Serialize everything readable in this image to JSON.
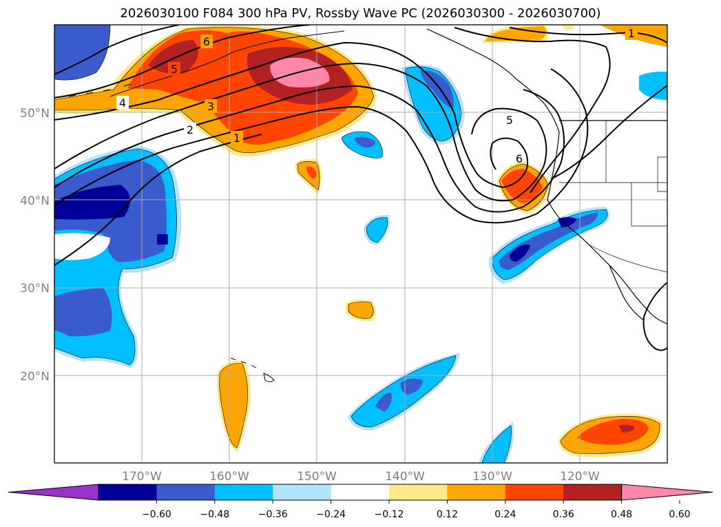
{
  "title": "2026030100 F084 300 hPa PV, Rossby Wave PC (2026030300 - 2026030700)",
  "map": {
    "lon_range": [
      -180,
      -110
    ],
    "lat_range": [
      10,
      60
    ],
    "lat_labels": [
      "50°N",
      "40°N",
      "30°N",
      "20°N"
    ],
    "lon_labels": [
      "170°W",
      "160°W",
      "150°W",
      "140°W",
      "130°W",
      "120°W"
    ],
    "contour_labels": [
      "6",
      "5",
      "4",
      "3",
      "2",
      "1",
      "5",
      "6",
      "1"
    ]
  },
  "colorbar": {
    "ticks": [
      "−0.60",
      "−0.48",
      "−0.36",
      "−0.24",
      "−0.12",
      "0.12",
      "0.24",
      "0.36",
      "0.48",
      "0.60"
    ],
    "colors": [
      "#9933cc",
      "#000099",
      "#3a5bcc",
      "#00bfff",
      "#b3e3ff",
      "#ffffff",
      "#ffe98a",
      "#ffa500",
      "#ff4500",
      "#b22222",
      "#ff88aa"
    ]
  }
}
